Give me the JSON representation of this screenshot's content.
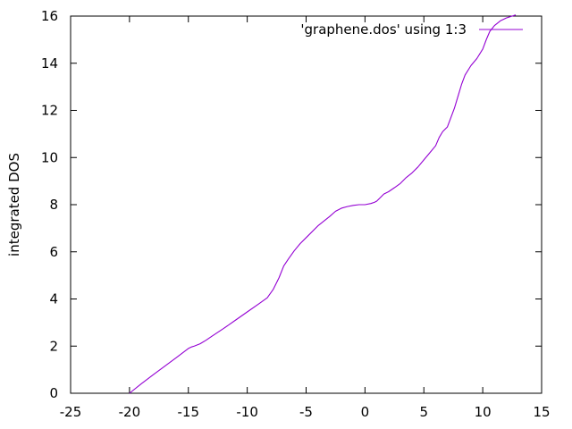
{
  "chart_data": {
    "type": "line",
    "title": "",
    "xlabel": "",
    "ylabel": "integrated DOS",
    "xlim": [
      -25,
      15
    ],
    "ylim": [
      0,
      16
    ],
    "xticks": [
      -25,
      -20,
      -15,
      -10,
      -5,
      0,
      5,
      10,
      15
    ],
    "yticks": [
      0,
      2,
      4,
      6,
      8,
      10,
      12,
      14,
      16
    ],
    "grid": false,
    "legend_position": "top-right",
    "series": [
      {
        "name": "'graphene.dos' using 1:3",
        "color": "#9400d3",
        "x": [
          -20.0,
          -19.0,
          -18.0,
          -17.0,
          -16.0,
          -15.0,
          -14.7,
          -14.5,
          -14.0,
          -13.5,
          -13.0,
          -12.0,
          -11.0,
          -10.0,
          -9.0,
          -8.3,
          -7.8,
          -7.3,
          -6.9,
          -6.5,
          -6.0,
          -5.5,
          -5.0,
          -4.0,
          -3.0,
          -2.5,
          -2.0,
          -1.5,
          -1.0,
          -0.5,
          0.0,
          0.5,
          0.8,
          1.0,
          1.3,
          1.6,
          2.0,
          2.5,
          3.0,
          3.5,
          4.0,
          4.5,
          5.0,
          5.5,
          6.0,
          6.3,
          6.6,
          7.0,
          7.3,
          7.6,
          7.9,
          8.2,
          8.5,
          9.0,
          9.5,
          10.0,
          10.3,
          10.6,
          11.0,
          11.5,
          12.0,
          12.5,
          12.8
        ],
        "y": [
          0.0,
          0.4,
          0.78,
          1.15,
          1.52,
          1.9,
          1.97,
          2.0,
          2.1,
          2.25,
          2.42,
          2.75,
          3.1,
          3.45,
          3.8,
          4.05,
          4.4,
          4.9,
          5.4,
          5.7,
          6.05,
          6.35,
          6.6,
          7.1,
          7.5,
          7.72,
          7.85,
          7.92,
          7.97,
          8.0,
          8.0,
          8.05,
          8.1,
          8.15,
          8.3,
          8.45,
          8.55,
          8.72,
          8.9,
          9.15,
          9.35,
          9.6,
          9.9,
          10.2,
          10.5,
          10.85,
          11.1,
          11.3,
          11.7,
          12.1,
          12.6,
          13.1,
          13.5,
          13.9,
          14.2,
          14.6,
          15.0,
          15.35,
          15.6,
          15.8,
          15.92,
          16.0,
          16.05
        ]
      }
    ]
  }
}
